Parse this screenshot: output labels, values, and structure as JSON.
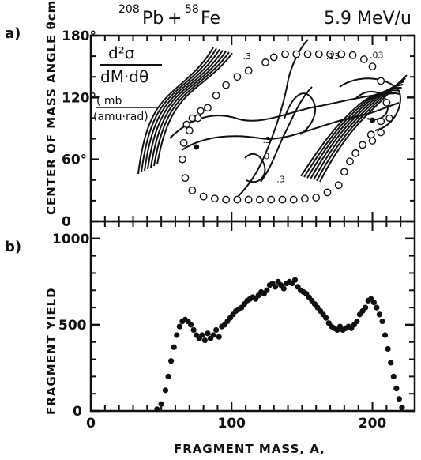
{
  "title": {
    "projectile_mass": "208",
    "projectile": "Pb",
    "plus": "+",
    "target_mass": "58",
    "target": "Fe",
    "energy": "5.9 MeV/u"
  },
  "chart_data": [
    {
      "panel_label": "a)",
      "type": "contour",
      "ylabel": "CENTER OF MASS ANGLE θcm",
      "ylim": [
        0,
        180
      ],
      "xlim": [
        0,
        230
      ],
      "y_ticks": [
        "0",
        "60°",
        "120°",
        "180°"
      ],
      "annotation": {
        "numerator": "d²σ",
        "denominator": "dM·dθ",
        "unit_numerator": "( mb",
        "unit_denominator": "(amu·rad)"
      },
      "contour_labels": [
        {
          "text": ".3",
          "x": 108,
          "y": 157
        },
        {
          "text": ".13",
          "x": 167,
          "y": 157
        },
        {
          "text": ".03",
          "x": 198,
          "y": 158
        },
        {
          "text": "0",
          "x": 123,
          "y": 60
        },
        {
          "text": ".3",
          "x": 132,
          "y": 38
        },
        {
          "text": ".3",
          "x": 122,
          "y": 76
        }
      ],
      "points_outer": [
        [
          65,
          60
        ],
        [
          67,
          42
        ],
        [
          72,
          30
        ],
        [
          80,
          24
        ],
        [
          88,
          22
        ],
        [
          96,
          21
        ],
        [
          104,
          21
        ],
        [
          112,
          21
        ],
        [
          120,
          21
        ],
        [
          128,
          21
        ],
        [
          136,
          21
        ],
        [
          144,
          21
        ],
        [
          152,
          22
        ],
        [
          160,
          23
        ],
        [
          168,
          28
        ],
        [
          176,
          35
        ],
        [
          180,
          48
        ],
        [
          184,
          58
        ],
        [
          188,
          66
        ],
        [
          193,
          74
        ],
        [
          199,
          84
        ],
        [
          206,
          97
        ],
        [
          210,
          115
        ],
        [
          206,
          136
        ],
        [
          200,
          150
        ],
        [
          194,
          157
        ],
        [
          186,
          161
        ],
        [
          178,
          162
        ],
        [
          170,
          162
        ],
        [
          162,
          162
        ],
        [
          154,
          162
        ],
        [
          146,
          162
        ],
        [
          138,
          162
        ],
        [
          130,
          159
        ],
        [
          124,
          154
        ],
        [
          112,
          146
        ],
        [
          104,
          140
        ],
        [
          96,
          132
        ],
        [
          89,
          122
        ],
        [
          83,
          110
        ],
        [
          76,
          100
        ],
        [
          70,
          88
        ],
        [
          66,
          76
        ]
      ],
      "points_inner": [
        [
          68,
          94
        ],
        [
          72,
          100
        ],
        [
          78,
          107
        ],
        [
          200,
          78
        ],
        [
          206,
          86
        ],
        [
          212,
          100
        ]
      ]
    },
    {
      "panel_label": "b)",
      "type": "scatter",
      "xlabel": "FRAGMENT MASS, A,",
      "ylabel": "FRAGMENT YIELD",
      "xlim": [
        0,
        230
      ],
      "ylim": [
        0,
        1100
      ],
      "x_ticks": [
        "0",
        "100",
        "200"
      ],
      "y_ticks": [
        "0",
        "500",
        "1000"
      ],
      "points": [
        [
          47,
          10
        ],
        [
          50,
          40
        ],
        [
          53,
          120
        ],
        [
          55,
          200
        ],
        [
          57,
          290
        ],
        [
          59,
          370
        ],
        [
          61,
          440
        ],
        [
          63,
          490
        ],
        [
          65,
          520
        ],
        [
          67,
          530
        ],
        [
          69,
          520
        ],
        [
          71,
          500
        ],
        [
          73,
          470
        ],
        [
          75,
          440
        ],
        [
          77,
          420
        ],
        [
          79,
          440
        ],
        [
          81,
          410
        ],
        [
          83,
          450
        ],
        [
          85,
          420
        ],
        [
          87,
          440
        ],
        [
          89,
          470
        ],
        [
          91,
          430
        ],
        [
          93,
          490
        ],
        [
          95,
          500
        ],
        [
          97,
          520
        ],
        [
          99,
          540
        ],
        [
          101,
          560
        ],
        [
          103,
          580
        ],
        [
          105,
          590
        ],
        [
          107,
          600
        ],
        [
          109,
          620
        ],
        [
          111,
          640
        ],
        [
          113,
          650
        ],
        [
          115,
          660
        ],
        [
          117,
          650
        ],
        [
          119,
          670
        ],
        [
          121,
          690
        ],
        [
          123,
          680
        ],
        [
          125,
          700
        ],
        [
          127,
          730
        ],
        [
          129,
          740
        ],
        [
          131,
          720
        ],
        [
          133,
          750
        ],
        [
          135,
          730
        ],
        [
          137,
          710
        ],
        [
          139,
          740
        ],
        [
          141,
          750
        ],
        [
          143,
          740
        ],
        [
          145,
          760
        ],
        [
          147,
          720
        ],
        [
          149,
          700
        ],
        [
          151,
          690
        ],
        [
          153,
          680
        ],
        [
          155,
          660
        ],
        [
          157,
          640
        ],
        [
          159,
          620
        ],
        [
          161,
          600
        ],
        [
          163,
          580
        ],
        [
          165,
          560
        ],
        [
          167,
          540
        ],
        [
          169,
          510
        ],
        [
          171,
          490
        ],
        [
          173,
          480
        ],
        [
          175,
          470
        ],
        [
          177,
          490
        ],
        [
          179,
          470
        ],
        [
          181,
          480
        ],
        [
          183,
          490
        ],
        [
          185,
          480
        ],
        [
          187,
          500
        ],
        [
          189,
          520
        ],
        [
          191,
          560
        ],
        [
          193,
          580
        ],
        [
          195,
          600
        ],
        [
          197,
          640
        ],
        [
          199,
          650
        ],
        [
          201,
          630
        ],
        [
          203,
          600
        ],
        [
          205,
          560
        ],
        [
          207,
          520
        ],
        [
          209,
          440
        ],
        [
          211,
          360
        ],
        [
          213,
          280
        ],
        [
          215,
          200
        ],
        [
          217,
          130
        ],
        [
          219,
          70
        ],
        [
          221,
          20
        ]
      ]
    }
  ]
}
